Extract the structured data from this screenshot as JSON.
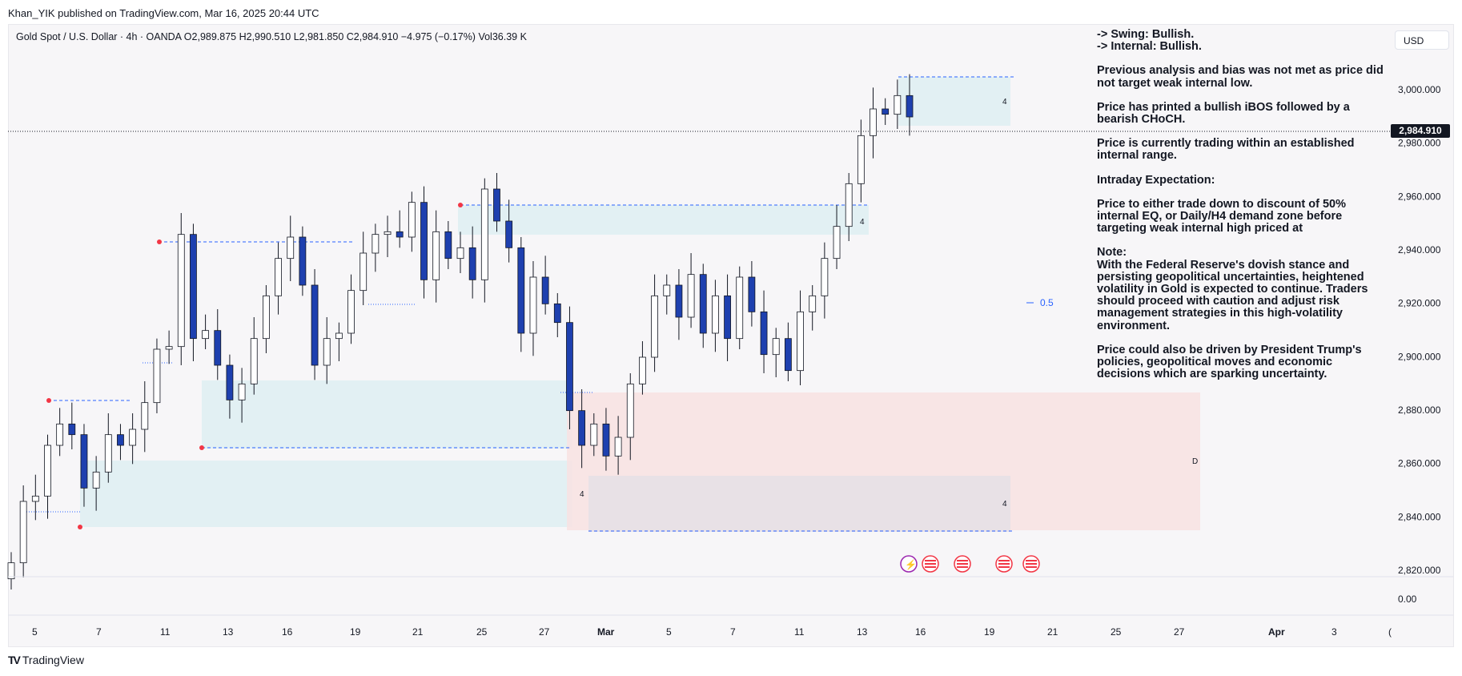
{
  "header": {
    "published_by": "Khan_YIK published on TradingView.com, Mar 16, 2025 20:44 UTC",
    "symbol_line": "Gold Spot / U.S. Dollar · 4h · OANDA   O2,989.875   H2,990.510   L2,981.850   C2,984.910   −4.975 (−0.17%)   Vol36.39 K",
    "currency_button": "USD"
  },
  "price_tag": "2,984.910",
  "fib_label": "0.5",
  "zone_labels": {
    "a": "4",
    "b": "4",
    "c": "4",
    "d": "4",
    "e": "D"
  },
  "notes": [
    "-> Swing:  Bullish.\n-> Internal:  Bullish.",
    "Previous analysis and bias was not met as price did not target weak internal low.",
    "Price has printed a bullish iBOS followed by a bearish CHoCH.",
    "Price is currently trading within an established internal range.",
    "Intraday Expectation:",
    "Price to either trade down to discount of 50% internal EQ, or Daily/H4 demand zone before targeting weak internal high priced at",
    "Note:\nWith the Federal Reserve's dovish stance and persisting geopolitical uncertainties, heightened volatility in Gold is expected to continue. Traders should proceed with caution and adjust risk management strategies in this high-volatility environment.",
    "Price could also be driven by President Trump's policies, geopolitical moves and economic decisions which are sparking uncertainty."
  ],
  "footer": {
    "brand": "TradingView"
  },
  "chart_data": {
    "type": "candlestick",
    "symbol": "Gold Spot / U.S. Dollar",
    "interval": "4h",
    "ylim": [
      2815,
      3010
    ],
    "y_ticks": [
      "3,000.000",
      "2,980.000",
      "2,960.000",
      "2,940.000",
      "2,920.000",
      "2,900.000",
      "2,880.000",
      "2,860.000",
      "2,840.000",
      "2,820.000"
    ],
    "volume_axis_tick": "0.00",
    "x_ticks": [
      "5",
      "7",
      "11",
      "13",
      "16",
      "19",
      "21",
      "25",
      "27",
      "Mar",
      "5",
      "7",
      "11",
      "13",
      "16",
      "19",
      "21",
      "25",
      "27",
      "Apr",
      "3",
      "("
    ],
    "last_price": 2984.91,
    "close_series": [
      2818,
      2841,
      2843,
      2862,
      2870,
      2866,
      2846,
      2852,
      2866,
      2862,
      2868,
      2878,
      2898,
      2899,
      2941,
      2902,
      2905,
      2892,
      2879,
      2885,
      2902,
      2918,
      2932,
      2940,
      2922,
      2892,
      2902,
      2904,
      2920,
      2934,
      2941,
      2942,
      2940,
      2953,
      2924,
      2942,
      2932,
      2936,
      2924,
      2958,
      2946,
      2936,
      2904,
      2925,
      2915,
      2908,
      2875,
      2862,
      2870,
      2858,
      2865,
      2885,
      2895,
      2918,
      2922,
      2910,
      2926,
      2904,
      2918,
      2902,
      2925,
      2912,
      2896,
      2902,
      2890,
      2912,
      2918,
      2932,
      2944,
      2960,
      2978,
      2988,
      2986,
      2993,
      2985
    ]
  }
}
